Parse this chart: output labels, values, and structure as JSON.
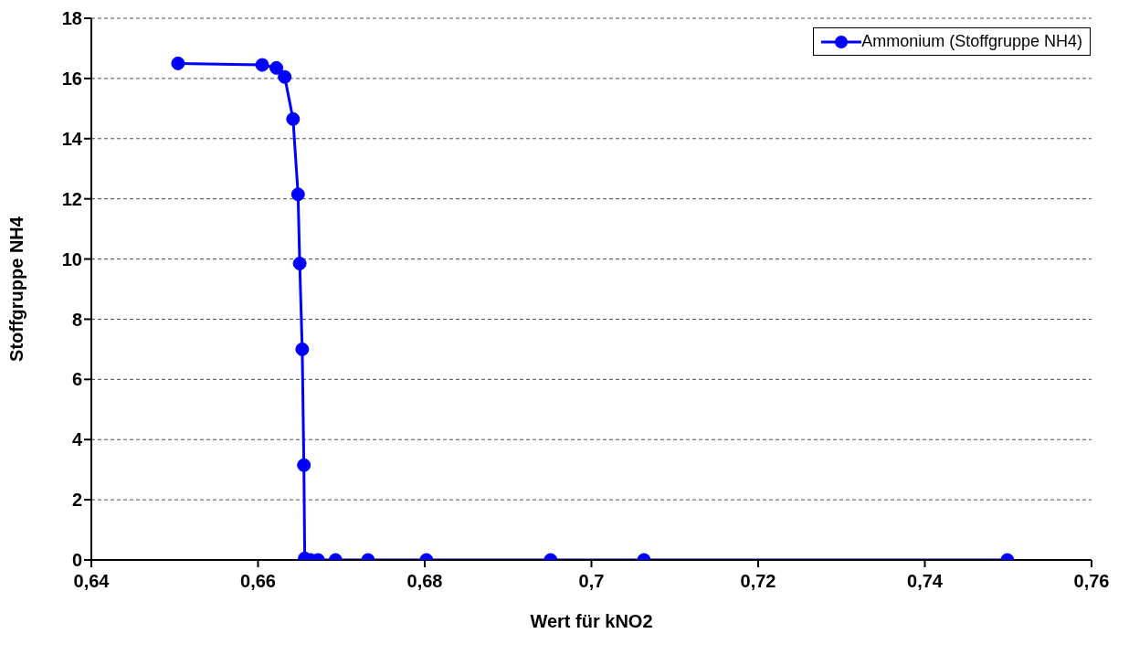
{
  "chart_data": {
    "type": "line",
    "xlabel": "Wert für kNO2",
    "ylabel": "Stoffgruppe NH4",
    "xlim": [
      0.64,
      0.76
    ],
    "xticks": [
      {
        "value": 0.64,
        "label": "0,64"
      },
      {
        "value": 0.66,
        "label": "0,66"
      },
      {
        "value": 0.68,
        "label": "0,68"
      },
      {
        "value": 0.7,
        "label": "0,7"
      },
      {
        "value": 0.72,
        "label": "0,72"
      },
      {
        "value": 0.74,
        "label": "0,74"
      },
      {
        "value": 0.76,
        "label": "0,76"
      }
    ],
    "ylim": [
      0,
      18
    ],
    "yticks": [
      0,
      2,
      4,
      6,
      8,
      10,
      12,
      14,
      16,
      18
    ],
    "grid": "y",
    "legend": "top right",
    "marker": "circle",
    "line_style": "solid",
    "series": [
      {
        "name": "Ammonium (Stoffgruppe NH4)",
        "color": "#0000ff",
        "x": [
          0.6504,
          0.6605,
          0.6622,
          0.6632,
          0.6642,
          0.6648,
          0.665,
          0.6653,
          0.6655,
          0.6656,
          0.6663,
          0.6672,
          0.6693,
          0.6732,
          0.6802,
          0.6951,
          0.7063,
          0.7499
        ],
        "values": [
          16.5,
          16.45,
          16.35,
          16.05,
          14.65,
          12.15,
          9.85,
          7.0,
          3.15,
          0.05,
          0,
          0,
          0,
          0,
          0,
          0,
          0,
          0
        ]
      }
    ]
  }
}
